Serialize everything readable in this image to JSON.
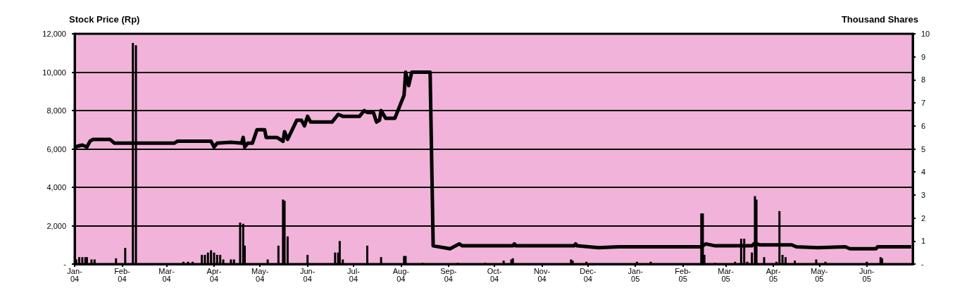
{
  "chart_data": {
    "type": "line",
    "ylabel": "Stock Price (Rp)",
    "y2label": "Thousand Shares",
    "grid": "y",
    "marker": "none",
    "xlim": [
      "2004-01-01",
      "2005-07-01"
    ],
    "xticks": [
      {
        "value": "2004-01-01",
        "label": "Jan-\n04"
      },
      {
        "value": "2004-02-01",
        "label": "Feb-\n04"
      },
      {
        "value": "2004-03-01",
        "label": "Mar-\n04"
      },
      {
        "value": "2004-04-01",
        "label": "Apr-\n04"
      },
      {
        "value": "2004-05-01",
        "label": "May-\n04"
      },
      {
        "value": "2004-06-01",
        "label": "Jun-\n04"
      },
      {
        "value": "2004-07-01",
        "label": "Jul-\n04"
      },
      {
        "value": "2004-08-01",
        "label": "Aug-\n04"
      },
      {
        "value": "2004-09-01",
        "label": "Sep-\n04"
      },
      {
        "value": "2004-10-01",
        "label": "Oct-\n04"
      },
      {
        "value": "2004-11-01",
        "label": "Nov-\n04"
      },
      {
        "value": "2004-12-01",
        "label": "Dec-\n04"
      },
      {
        "value": "2005-01-01",
        "label": "Jan-\n05"
      },
      {
        "value": "2005-02-01",
        "label": "Feb-\n05"
      },
      {
        "value": "2005-03-01",
        "label": "Mar-\n05"
      },
      {
        "value": "2005-04-01",
        "label": "Apr-\n05"
      },
      {
        "value": "2005-05-01",
        "label": "May-\n05"
      },
      {
        "value": "2005-06-01",
        "label": "Jun-\n05"
      }
    ],
    "ylim": [
      0,
      12000
    ],
    "yticks": [
      {
        "value": 0,
        "label": "-"
      },
      {
        "value": 2000,
        "label": "2,000"
      },
      {
        "value": 4000,
        "label": "4,000"
      },
      {
        "value": 6000,
        "label": "6,000"
      },
      {
        "value": 8000,
        "label": "8,000"
      },
      {
        "value": 10000,
        "label": "10,000"
      },
      {
        "value": 12000,
        "label": "12,000"
      }
    ],
    "y2lim": [
      0,
      10
    ],
    "y2ticks": [
      {
        "value": 0,
        "label": "-"
      },
      1,
      2,
      3,
      4,
      5,
      6,
      7,
      8,
      9,
      10
    ],
    "series": [
      {
        "type": "bar",
        "axis": "y2",
        "color": "#000000",
        "x": [
          "2004-01-02",
          "2004-01-04",
          "2004-01-06",
          "2004-01-08",
          "2004-01-09",
          "2004-01-12",
          "2004-01-14",
          "2004-01-28",
          "2004-02-03",
          "2004-02-08",
          "2004-02-10",
          "2004-03-12",
          "2004-03-15",
          "2004-03-18",
          "2004-03-24",
          "2004-03-26",
          "2004-03-28",
          "2004-03-30",
          "2004-04-01",
          "2004-04-03",
          "2004-04-05",
          "2004-04-07",
          "2004-04-12",
          "2004-04-14",
          "2004-04-18",
          "2004-04-20",
          "2004-04-21",
          "2004-05-06",
          "2004-05-13",
          "2004-05-16",
          "2004-05-17",
          "2004-05-19",
          "2004-06-01",
          "2004-06-19",
          "2004-06-21",
          "2004-06-22",
          "2004-06-24",
          "2004-07-10",
          "2004-07-19",
          "2004-08-03",
          "2004-08-04",
          "2004-08-15",
          "2004-09-07",
          "2004-09-25",
          "2004-10-07",
          "2004-10-12",
          "2004-10-13",
          "2004-11-20",
          "2004-11-21",
          "2004-11-30",
          "2005-01-02",
          "2005-01-11",
          "2005-02-13",
          "2005-02-14",
          "2005-02-15",
          "2005-02-22",
          "2005-03-07",
          "2005-03-11",
          "2005-03-13",
          "2005-03-15",
          "2005-03-18",
          "2005-03-20",
          "2005-03-21",
          "2005-03-26",
          "2005-04-03",
          "2005-04-05",
          "2005-04-07",
          "2005-04-09",
          "2005-04-15",
          "2005-04-29",
          "2005-05-05",
          "2005-06-01",
          "2005-06-10",
          "2005-06-11"
        ],
        "values": [
          0.2,
          0.3,
          0.3,
          0.3,
          0.3,
          0.2,
          0.2,
          0.25,
          0.7,
          9.6,
          9.5,
          0.1,
          0.1,
          0.1,
          0.4,
          0.4,
          0.5,
          0.6,
          0.5,
          0.4,
          0.4,
          0.2,
          0.2,
          0.2,
          1.8,
          1.75,
          0.8,
          0.2,
          0.8,
          2.8,
          2.75,
          1.2,
          0.4,
          0.5,
          0.5,
          1.0,
          0.2,
          0.8,
          0.3,
          0.35,
          0.35,
          0.05,
          0.05,
          0.05,
          0.15,
          0.2,
          0.25,
          0.2,
          0.15,
          0.1,
          0.1,
          0.1,
          2.2,
          2.2,
          0.4,
          0.05,
          0.1,
          1.1,
          1.1,
          0.1,
          0.5,
          2.95,
          2.8,
          0.3,
          0.1,
          2.3,
          0.4,
          0.3,
          0.15,
          0.2,
          0.1,
          0.1,
          0.3,
          0.25
        ]
      },
      {
        "color": "#000000",
        "x": [
          "2004-01-01",
          "2004-01-06",
          "2004-01-09",
          "2004-01-11",
          "2004-01-13",
          "2004-01-24",
          "2004-01-27",
          "2004-03-06",
          "2004-03-08",
          "2004-03-30",
          "2004-04-01",
          "2004-04-03",
          "2004-04-12",
          "2004-04-19",
          "2004-04-20",
          "2004-04-21",
          "2004-04-23",
          "2004-04-26",
          "2004-04-29",
          "2004-05-04",
          "2004-05-05",
          "2004-05-12",
          "2004-05-16",
          "2004-05-17",
          "2004-05-19",
          "2004-05-25",
          "2004-05-28",
          "2004-05-30",
          "2004-06-01",
          "2004-06-03",
          "2004-06-17",
          "2004-06-21",
          "2004-06-24",
          "2004-07-05",
          "2004-07-08",
          "2004-07-10",
          "2004-07-14",
          "2004-07-16",
          "2004-07-18",
          "2004-07-19",
          "2004-07-22",
          "2004-07-28",
          "2004-08-02",
          "2004-08-03",
          "2004-08-04",
          "2004-08-06",
          "2004-08-08",
          "2004-08-20",
          "2004-08-22",
          "2004-09-02",
          "2004-09-08",
          "2004-09-10",
          "2004-10-13",
          "2004-10-14",
          "2004-10-15",
          "2004-11-22",
          "2004-11-23",
          "2004-11-24",
          "2004-12-08",
          "2004-12-21",
          "2005-02-13",
          "2005-02-16",
          "2005-02-22",
          "2005-03-18",
          "2005-03-20",
          "2005-03-23",
          "2005-03-30",
          "2005-04-13",
          "2005-04-16",
          "2005-04-30",
          "2005-05-18",
          "2005-05-21",
          "2005-06-07",
          "2005-06-08",
          "2005-06-30"
        ],
        "values": [
          6100,
          6200,
          6100,
          6400,
          6500,
          6500,
          6300,
          6300,
          6400,
          6400,
          6100,
          6300,
          6350,
          6300,
          6600,
          6100,
          6300,
          6300,
          7000,
          7000,
          6600,
          6600,
          6400,
          6900,
          6500,
          7500,
          7500,
          7200,
          7700,
          7400,
          7400,
          7800,
          7700,
          7700,
          8000,
          7900,
          7900,
          7400,
          7500,
          8000,
          7600,
          7600,
          8600,
          8800,
          10000,
          9300,
          10000,
          10000,
          950,
          800,
          1050,
          950,
          950,
          1050,
          950,
          950,
          1050,
          950,
          850,
          900,
          900,
          1050,
          950,
          950,
          1100,
          1000,
          1000,
          1000,
          900,
          850,
          900,
          800,
          800,
          900,
          900
        ]
      }
    ]
  }
}
